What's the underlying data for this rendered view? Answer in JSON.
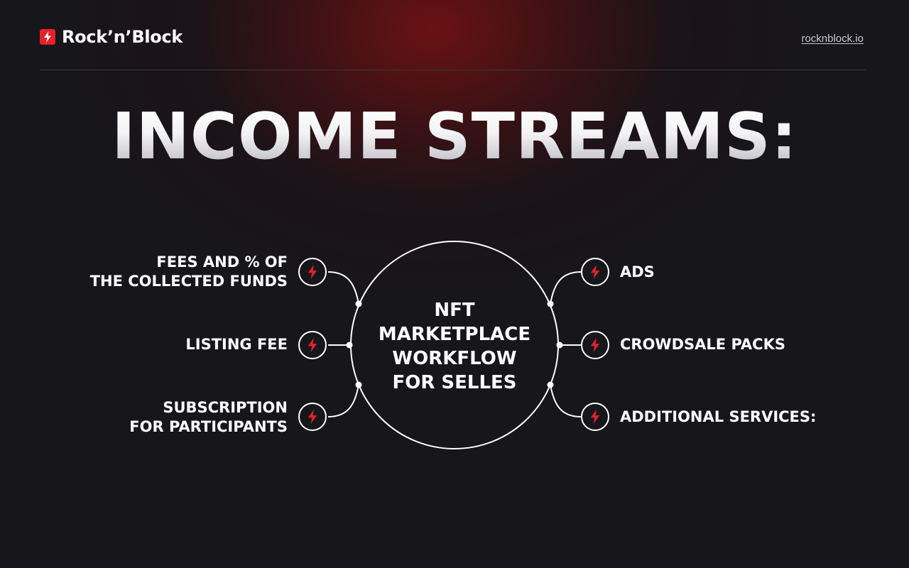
{
  "header": {
    "brand": "Rock’n’Block",
    "site_link": "rocknblock.io"
  },
  "title": "INCOME STREAMS:",
  "center": {
    "lines": [
      "NFT",
      "MARKETPLACE",
      "WORKFLOW",
      "FOR SELLES"
    ]
  },
  "left_items": [
    {
      "lines": [
        "FEES AND % OF",
        "THE COLLECTED FUNDS"
      ]
    },
    {
      "lines": [
        "LISTING FEE"
      ]
    },
    {
      "lines": [
        "SUBSCRIPTION",
        "FOR PARTICIPANTS"
      ]
    }
  ],
  "right_items": [
    {
      "lines": [
        "ADS"
      ]
    },
    {
      "lines": [
        "CROWDSALE PACKS"
      ]
    },
    {
      "lines": [
        "ADDITIONAL SERVICES:"
      ]
    }
  ],
  "colors": {
    "accent": "#e5212b",
    "background": "#17161b",
    "glow": "#7a1416",
    "line": "#ffffff"
  },
  "icons": {
    "brand": "lightning-bolt-icon",
    "node": "lightning-bolt-icon"
  }
}
